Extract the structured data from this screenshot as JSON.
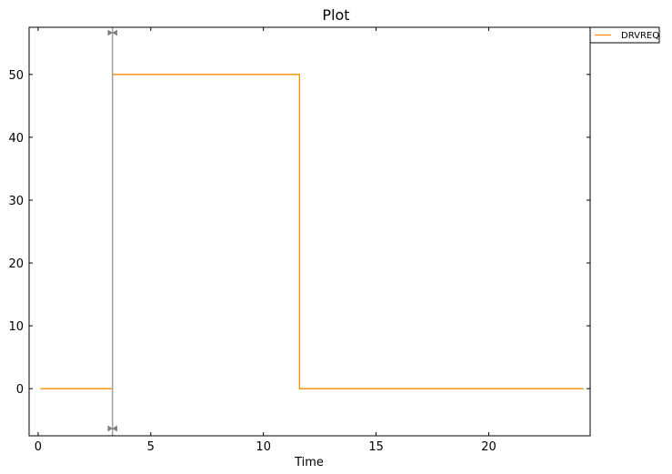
{
  "chart_data": {
    "type": "line",
    "title": "Plot",
    "xlabel": "Time",
    "ylabel": "",
    "xlim": [
      -0.4,
      24.5
    ],
    "ylim": [
      -7.5,
      57.5
    ],
    "xticks": [
      0,
      5,
      10,
      15,
      20
    ],
    "yticks": [
      0,
      10,
      20,
      30,
      40,
      50
    ],
    "grid": false,
    "legend_position": "outside-top-right",
    "cursor_x": 3.3,
    "cursor_color": "#a0a0a0",
    "series": [
      {
        "name": "DRVREQ",
        "color": "#ff8c00",
        "step": "post",
        "x": [
          0.1,
          3.3,
          11.6,
          24.2
        ],
        "y": [
          0,
          50,
          0,
          0
        ]
      }
    ]
  }
}
